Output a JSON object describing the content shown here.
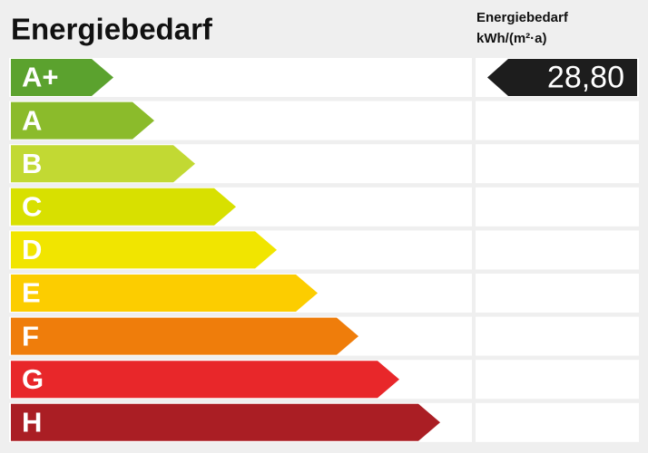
{
  "header": {
    "title": "Energiebedarf",
    "column_title": "Energiebedarf",
    "column_unit": "kWh/(m²·a)"
  },
  "classes": [
    {
      "label": "A+",
      "color": "#5ba22e"
    },
    {
      "label": "A",
      "color": "#8bbb2b"
    },
    {
      "label": "B",
      "color": "#c2d933"
    },
    {
      "label": "C",
      "color": "#d8e000"
    },
    {
      "label": "D",
      "color": "#f1e500"
    },
    {
      "label": "E",
      "color": "#fccd00"
    },
    {
      "label": "F",
      "color": "#ef7d0b"
    },
    {
      "label": "G",
      "color": "#e8272a"
    },
    {
      "label": "H",
      "color": "#aa1e24"
    }
  ],
  "indicator": {
    "value": "28,80",
    "color": "#1d1d1d"
  }
}
